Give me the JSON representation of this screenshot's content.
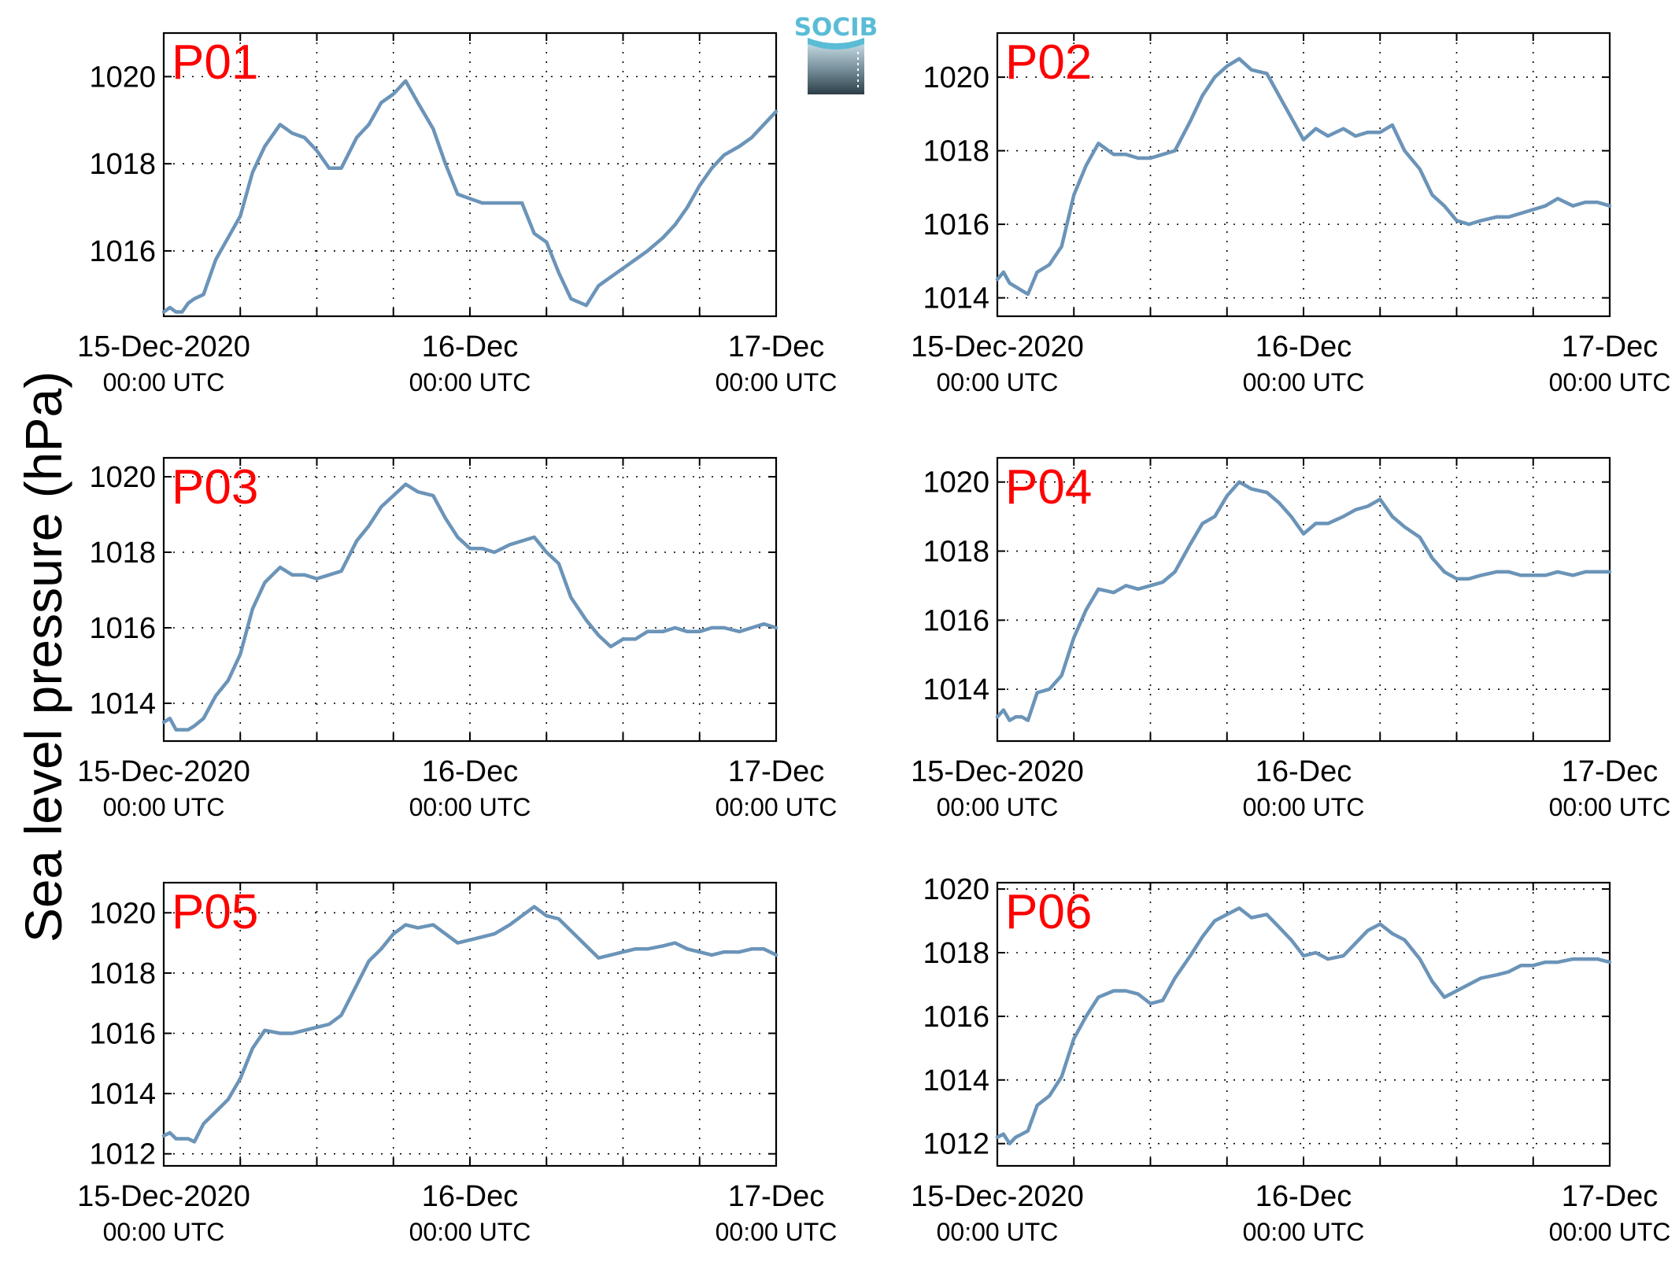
{
  "figure": {
    "ylabel": "Sea level pressure (hPa)",
    "logo_text": "SOCIB",
    "colors": {
      "series": "#6b94b8",
      "panel_label": "#ff0000",
      "logo": "#5bbcd6"
    }
  },
  "chart_data": [
    {
      "type": "line",
      "panel_label": "P01",
      "x_unit": "days since 15-Dec-2020 00:00 UTC",
      "xlim": [
        0,
        2
      ],
      "ylim": [
        1014.5,
        1021
      ],
      "yticks": [
        1016,
        1018,
        1020
      ],
      "xticks": [
        {
          "main": "15-Dec-2020",
          "sub": "00:00 UTC"
        },
        {
          "main": "16-Dec",
          "sub": "00:00 UTC"
        },
        {
          "main": "17-Dec",
          "sub": "00:00 UTC"
        }
      ],
      "grid": true,
      "x": [
        0,
        0.02,
        0.04,
        0.06,
        0.08,
        0.1,
        0.13,
        0.17,
        0.21,
        0.25,
        0.29,
        0.33,
        0.38,
        0.42,
        0.46,
        0.5,
        0.54,
        0.58,
        0.63,
        0.67,
        0.71,
        0.75,
        0.79,
        0.83,
        0.88,
        0.92,
        0.96,
        1,
        1.04,
        1.08,
        1.13,
        1.17,
        1.21,
        1.25,
        1.29,
        1.33,
        1.38,
        1.42,
        1.46,
        1.5,
        1.54,
        1.58,
        1.63,
        1.67,
        1.71,
        1.75,
        1.79,
        1.83,
        1.88,
        1.92,
        1.96,
        2
      ],
      "y": [
        1014.6,
        1014.7,
        1014.6,
        1014.6,
        1014.8,
        1014.9,
        1015.0,
        1015.8,
        1016.3,
        1016.8,
        1017.8,
        1018.4,
        1018.9,
        1018.7,
        1018.6,
        1018.3,
        1017.9,
        1017.9,
        1018.6,
        1018.9,
        1019.4,
        1019.6,
        1019.9,
        1019.4,
        1018.8,
        1018.0,
        1017.3,
        1017.2,
        1017.1,
        1017.1,
        1017.1,
        1017.1,
        1016.4,
        1016.2,
        1015.5,
        1014.9,
        1014.75,
        1015.2,
        1015.4,
        1015.6,
        1015.8,
        1016.0,
        1016.3,
        1016.6,
        1017.0,
        1017.5,
        1017.9,
        1018.2,
        1018.4,
        1018.6,
        1018.9,
        1019.2
      ]
    },
    {
      "type": "line",
      "panel_label": "P02",
      "x_unit": "days since 15-Dec-2020 00:00 UTC",
      "xlim": [
        0,
        2
      ],
      "ylim": [
        1013.5,
        1021.2
      ],
      "yticks": [
        1014,
        1016,
        1018,
        1020
      ],
      "xticks": [
        {
          "main": "15-Dec-2020",
          "sub": "00:00 UTC"
        },
        {
          "main": "16-Dec",
          "sub": "00:00 UTC"
        },
        {
          "main": "17-Dec",
          "sub": "00:00 UTC"
        }
      ],
      "grid": true,
      "x": [
        0,
        0.02,
        0.04,
        0.06,
        0.08,
        0.1,
        0.13,
        0.17,
        0.21,
        0.25,
        0.29,
        0.33,
        0.38,
        0.42,
        0.46,
        0.5,
        0.54,
        0.58,
        0.63,
        0.67,
        0.71,
        0.75,
        0.79,
        0.83,
        0.88,
        0.92,
        0.96,
        1,
        1.04,
        1.08,
        1.13,
        1.17,
        1.21,
        1.25,
        1.29,
        1.33,
        1.38,
        1.42,
        1.46,
        1.5,
        1.54,
        1.58,
        1.63,
        1.67,
        1.71,
        1.75,
        1.79,
        1.83,
        1.88,
        1.92,
        1.96,
        2
      ],
      "y": [
        1014.5,
        1014.7,
        1014.4,
        1014.3,
        1014.2,
        1014.1,
        1014.7,
        1014.9,
        1015.4,
        1016.8,
        1017.6,
        1018.2,
        1017.9,
        1017.9,
        1017.8,
        1017.8,
        1017.9,
        1018.0,
        1018.8,
        1019.5,
        1020.0,
        1020.3,
        1020.5,
        1020.2,
        1020.1,
        1019.5,
        1018.9,
        1018.3,
        1018.6,
        1018.4,
        1018.6,
        1018.4,
        1018.5,
        1018.5,
        1018.7,
        1018.0,
        1017.5,
        1016.8,
        1016.5,
        1016.1,
        1016.0,
        1016.1,
        1016.2,
        1016.2,
        1016.3,
        1016.4,
        1016.5,
        1016.7,
        1016.5,
        1016.6,
        1016.6,
        1016.5
      ]
    },
    {
      "type": "line",
      "panel_label": "P03",
      "x_unit": "days since 15-Dec-2020 00:00 UTC",
      "xlim": [
        0,
        2
      ],
      "ylim": [
        1013,
        1020.5
      ],
      "yticks": [
        1014,
        1016,
        1018,
        1020
      ],
      "xticks": [
        {
          "main": "15-Dec-2020",
          "sub": "00:00 UTC"
        },
        {
          "main": "16-Dec",
          "sub": "00:00 UTC"
        },
        {
          "main": "17-Dec",
          "sub": "00:00 UTC"
        }
      ],
      "grid": true,
      "x": [
        0,
        0.02,
        0.04,
        0.06,
        0.08,
        0.1,
        0.13,
        0.17,
        0.21,
        0.25,
        0.29,
        0.33,
        0.38,
        0.42,
        0.46,
        0.5,
        0.54,
        0.58,
        0.63,
        0.67,
        0.71,
        0.75,
        0.79,
        0.83,
        0.88,
        0.92,
        0.96,
        1,
        1.04,
        1.08,
        1.13,
        1.17,
        1.21,
        1.25,
        1.29,
        1.33,
        1.38,
        1.42,
        1.46,
        1.5,
        1.54,
        1.58,
        1.63,
        1.67,
        1.71,
        1.75,
        1.79,
        1.83,
        1.88,
        1.92,
        1.96,
        2
      ],
      "y": [
        1013.5,
        1013.6,
        1013.3,
        1013.3,
        1013.3,
        1013.4,
        1013.6,
        1014.2,
        1014.6,
        1015.3,
        1016.5,
        1017.2,
        1017.6,
        1017.4,
        1017.4,
        1017.3,
        1017.4,
        1017.5,
        1018.3,
        1018.7,
        1019.2,
        1019.5,
        1019.8,
        1019.6,
        1019.5,
        1018.9,
        1018.4,
        1018.1,
        1018.1,
        1018.0,
        1018.2,
        1018.3,
        1018.4,
        1018.0,
        1017.7,
        1016.8,
        1016.2,
        1015.8,
        1015.5,
        1015.7,
        1015.7,
        1015.9,
        1015.9,
        1016.0,
        1015.9,
        1015.9,
        1016.0,
        1016.0,
        1015.9,
        1016.0,
        1016.1,
        1016.0
      ]
    },
    {
      "type": "line",
      "panel_label": "P04",
      "x_unit": "days since 15-Dec-2020 00:00 UTC",
      "xlim": [
        0,
        2
      ],
      "ylim": [
        1012.5,
        1020.7
      ],
      "yticks": [
        1014,
        1016,
        1018,
        1020
      ],
      "xticks": [
        {
          "main": "15-Dec-2020",
          "sub": "00:00 UTC"
        },
        {
          "main": "16-Dec",
          "sub": "00:00 UTC"
        },
        {
          "main": "17-Dec",
          "sub": "00:00 UTC"
        }
      ],
      "grid": true,
      "x": [
        0,
        0.02,
        0.04,
        0.06,
        0.08,
        0.1,
        0.13,
        0.17,
        0.21,
        0.25,
        0.29,
        0.33,
        0.38,
        0.42,
        0.46,
        0.5,
        0.54,
        0.58,
        0.63,
        0.67,
        0.71,
        0.75,
        0.79,
        0.83,
        0.88,
        0.92,
        0.96,
        1,
        1.04,
        1.08,
        1.13,
        1.17,
        1.21,
        1.25,
        1.29,
        1.33,
        1.38,
        1.42,
        1.46,
        1.5,
        1.54,
        1.58,
        1.63,
        1.67,
        1.71,
        1.75,
        1.79,
        1.83,
        1.88,
        1.92,
        1.96,
        2
      ],
      "y": [
        1013.2,
        1013.4,
        1013.1,
        1013.2,
        1013.2,
        1013.1,
        1013.9,
        1014.0,
        1014.4,
        1015.5,
        1016.3,
        1016.9,
        1016.8,
        1017.0,
        1016.9,
        1017.0,
        1017.1,
        1017.4,
        1018.2,
        1018.8,
        1019.0,
        1019.6,
        1020.0,
        1019.8,
        1019.7,
        1019.4,
        1019.0,
        1018.5,
        1018.8,
        1018.8,
        1019.0,
        1019.2,
        1019.3,
        1019.5,
        1019.0,
        1018.7,
        1018.4,
        1017.8,
        1017.4,
        1017.2,
        1017.2,
        1017.3,
        1017.4,
        1017.4,
        1017.3,
        1017.3,
        1017.3,
        1017.4,
        1017.3,
        1017.4,
        1017.4,
        1017.4
      ]
    },
    {
      "type": "line",
      "panel_label": "P05",
      "x_unit": "days since 15-Dec-2020 00:00 UTC",
      "xlim": [
        0,
        2
      ],
      "ylim": [
        1011.6,
        1021
      ],
      "yticks": [
        1012,
        1014,
        1016,
        1018,
        1020
      ],
      "xticks": [
        {
          "main": "15-Dec-2020",
          "sub": "00:00 UTC"
        },
        {
          "main": "16-Dec",
          "sub": "00:00 UTC"
        },
        {
          "main": "17-Dec",
          "sub": "00:00 UTC"
        }
      ],
      "grid": true,
      "x": [
        0,
        0.02,
        0.04,
        0.06,
        0.08,
        0.1,
        0.13,
        0.17,
        0.21,
        0.25,
        0.29,
        0.33,
        0.38,
        0.42,
        0.46,
        0.5,
        0.54,
        0.58,
        0.63,
        0.67,
        0.71,
        0.75,
        0.79,
        0.83,
        0.88,
        0.92,
        0.96,
        1,
        1.04,
        1.08,
        1.13,
        1.17,
        1.21,
        1.25,
        1.29,
        1.33,
        1.38,
        1.42,
        1.46,
        1.5,
        1.54,
        1.58,
        1.63,
        1.67,
        1.71,
        1.75,
        1.79,
        1.83,
        1.88,
        1.92,
        1.96,
        2
      ],
      "y": [
        1012.6,
        1012.7,
        1012.5,
        1012.5,
        1012.5,
        1012.4,
        1013.0,
        1013.4,
        1013.8,
        1014.5,
        1015.5,
        1016.1,
        1016.0,
        1016.0,
        1016.1,
        1016.2,
        1016.3,
        1016.6,
        1017.6,
        1018.4,
        1018.8,
        1019.3,
        1019.6,
        1019.5,
        1019.6,
        1019.3,
        1019.0,
        1019.1,
        1019.2,
        1019.3,
        1019.6,
        1019.9,
        1020.2,
        1019.9,
        1019.8,
        1019.4,
        1018.9,
        1018.5,
        1018.6,
        1018.7,
        1018.8,
        1018.8,
        1018.9,
        1019.0,
        1018.8,
        1018.7,
        1018.6,
        1018.7,
        1018.7,
        1018.8,
        1018.8,
        1018.6
      ]
    },
    {
      "type": "line",
      "panel_label": "P06",
      "x_unit": "days since 15-Dec-2020 00:00 UTC",
      "xlim": [
        0,
        2
      ],
      "ylim": [
        1011.3,
        1020.2
      ],
      "yticks": [
        1012,
        1014,
        1016,
        1018,
        1020
      ],
      "xticks": [
        {
          "main": "15-Dec-2020",
          "sub": "00:00 UTC"
        },
        {
          "main": "16-Dec",
          "sub": "00:00 UTC"
        },
        {
          "main": "17-Dec",
          "sub": "00:00 UTC"
        }
      ],
      "grid": true,
      "x": [
        0,
        0.02,
        0.04,
        0.06,
        0.08,
        0.1,
        0.13,
        0.17,
        0.21,
        0.25,
        0.29,
        0.33,
        0.38,
        0.42,
        0.46,
        0.5,
        0.54,
        0.58,
        0.63,
        0.67,
        0.71,
        0.75,
        0.79,
        0.83,
        0.88,
        0.92,
        0.96,
        1,
        1.04,
        1.08,
        1.13,
        1.17,
        1.21,
        1.25,
        1.29,
        1.33,
        1.38,
        1.42,
        1.46,
        1.5,
        1.54,
        1.58,
        1.63,
        1.67,
        1.71,
        1.75,
        1.79,
        1.83,
        1.88,
        1.92,
        1.96,
        2
      ],
      "y": [
        1012.2,
        1012.3,
        1012.0,
        1012.2,
        1012.3,
        1012.4,
        1013.2,
        1013.5,
        1014.1,
        1015.3,
        1016.0,
        1016.6,
        1016.8,
        1016.8,
        1016.7,
        1016.4,
        1016.5,
        1017.2,
        1017.9,
        1018.5,
        1019.0,
        1019.2,
        1019.4,
        1019.1,
        1019.2,
        1018.8,
        1018.4,
        1017.9,
        1018.0,
        1017.8,
        1017.9,
        1018.3,
        1018.7,
        1018.9,
        1018.6,
        1018.4,
        1017.8,
        1017.1,
        1016.6,
        1016.8,
        1017.0,
        1017.2,
        1017.3,
        1017.4,
        1017.6,
        1017.6,
        1017.7,
        1017.7,
        1017.8,
        1017.8,
        1017.8,
        1017.7
      ]
    }
  ]
}
